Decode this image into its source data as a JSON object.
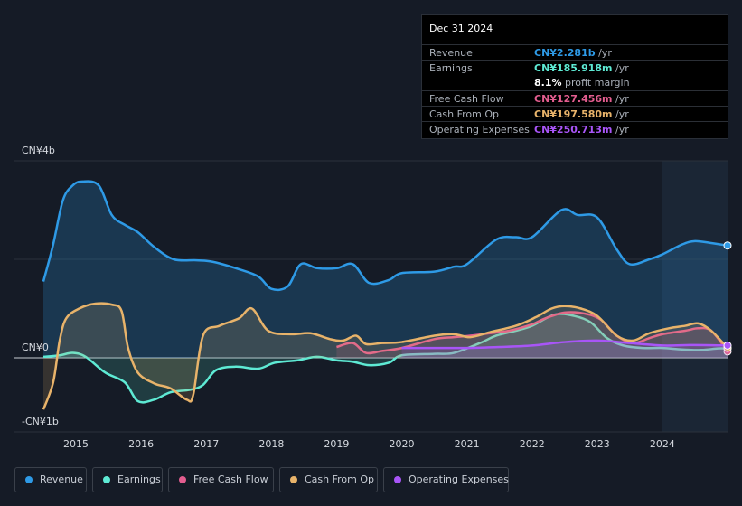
{
  "tooltip": {
    "date": "Dec 31 2024",
    "rows": [
      {
        "label": "Revenue",
        "value": "CN¥2.281b",
        "unit": "/yr",
        "color": "#2e9ae6"
      },
      {
        "label": "Earnings",
        "value": "CN¥185.918m",
        "unit": "/yr",
        "color": "#5eead4"
      },
      {
        "label": "",
        "value": "8.1%",
        "unit": "profit margin",
        "color": "#ffffff"
      },
      {
        "label": "Free Cash Flow",
        "value": "CN¥127.456m",
        "unit": "/yr",
        "color": "#e35d8f"
      },
      {
        "label": "Cash From Op",
        "value": "CN¥197.580m",
        "unit": "/yr",
        "color": "#e8b36a"
      },
      {
        "label": "Operating Expenses",
        "value": "CN¥250.713m",
        "unit": "/yr",
        "color": "#a855f7"
      }
    ]
  },
  "legend": [
    {
      "label": "Revenue",
      "color": "#2e9ae6"
    },
    {
      "label": "Earnings",
      "color": "#5eead4"
    },
    {
      "label": "Free Cash Flow",
      "color": "#e35d8f"
    },
    {
      "label": "Cash From Op",
      "color": "#e8b36a"
    },
    {
      "label": "Operating Expenses",
      "color": "#a855f7"
    }
  ],
  "chart_data": {
    "type": "area",
    "title": "",
    "xlabel": "",
    "ylabel": "",
    "y_tick_labels": [
      {
        "label": "CN¥4b",
        "value": 4
      },
      {
        "label": "CN¥0",
        "value": 0
      },
      {
        "label": "-CN¥1b",
        "value": -1
      }
    ],
    "ylim": [
      -1.5,
      4
    ],
    "xlim": [
      2014.5,
      2025.0
    ],
    "x_ticks": [
      2015,
      2016,
      2017,
      2018,
      2019,
      2020,
      2021,
      2022,
      2023,
      2024
    ],
    "highlight_start": 2024.0,
    "units": "CN¥ billions",
    "series": [
      {
        "name": "Revenue",
        "color": "#2e9ae6",
        "fill": true,
        "points": [
          [
            2014.5,
            1.55
          ],
          [
            2014.65,
            2.3
          ],
          [
            2014.8,
            3.2
          ],
          [
            2014.95,
            3.5
          ],
          [
            2015.1,
            3.58
          ],
          [
            2015.35,
            3.5
          ],
          [
            2015.55,
            2.9
          ],
          [
            2015.75,
            2.7
          ],
          [
            2015.95,
            2.55
          ],
          [
            2016.2,
            2.25
          ],
          [
            2016.5,
            2.0
          ],
          [
            2016.85,
            1.98
          ],
          [
            2017.1,
            1.95
          ],
          [
            2017.5,
            1.8
          ],
          [
            2017.8,
            1.65
          ],
          [
            2018.0,
            1.4
          ],
          [
            2018.25,
            1.45
          ],
          [
            2018.45,
            1.9
          ],
          [
            2018.7,
            1.82
          ],
          [
            2019.0,
            1.82
          ],
          [
            2019.25,
            1.9
          ],
          [
            2019.5,
            1.52
          ],
          [
            2019.8,
            1.58
          ],
          [
            2020.0,
            1.72
          ],
          [
            2020.5,
            1.75
          ],
          [
            2020.8,
            1.85
          ],
          [
            2021.0,
            1.9
          ],
          [
            2021.45,
            2.4
          ],
          [
            2021.75,
            2.45
          ],
          [
            2022.0,
            2.45
          ],
          [
            2022.45,
            3.0
          ],
          [
            2022.7,
            2.9
          ],
          [
            2023.0,
            2.85
          ],
          [
            2023.3,
            2.2
          ],
          [
            2023.5,
            1.9
          ],
          [
            2023.8,
            2.0
          ],
          [
            2024.0,
            2.1
          ],
          [
            2024.3,
            2.3
          ],
          [
            2024.5,
            2.37
          ],
          [
            2024.75,
            2.33
          ],
          [
            2025.0,
            2.28
          ]
        ]
      },
      {
        "name": "Earnings",
        "color": "#5eead4",
        "fill": true,
        "points": [
          [
            2014.5,
            0.02
          ],
          [
            2014.75,
            0.05
          ],
          [
            2014.95,
            0.1
          ],
          [
            2015.15,
            0.02
          ],
          [
            2015.45,
            -0.3
          ],
          [
            2015.75,
            -0.5
          ],
          [
            2015.95,
            -0.88
          ],
          [
            2016.2,
            -0.85
          ],
          [
            2016.45,
            -0.7
          ],
          [
            2016.75,
            -0.65
          ],
          [
            2016.95,
            -0.55
          ],
          [
            2017.15,
            -0.25
          ],
          [
            2017.45,
            -0.18
          ],
          [
            2017.8,
            -0.22
          ],
          [
            2018.05,
            -0.1
          ],
          [
            2018.4,
            -0.05
          ],
          [
            2018.7,
            0.02
          ],
          [
            2019.0,
            -0.05
          ],
          [
            2019.25,
            -0.08
          ],
          [
            2019.5,
            -0.15
          ],
          [
            2019.8,
            -0.1
          ],
          [
            2020.0,
            0.05
          ],
          [
            2020.5,
            0.08
          ],
          [
            2020.8,
            0.1
          ],
          [
            2021.2,
            0.3
          ],
          [
            2021.45,
            0.45
          ],
          [
            2021.75,
            0.55
          ],
          [
            2022.0,
            0.65
          ],
          [
            2022.35,
            0.88
          ],
          [
            2022.65,
            0.85
          ],
          [
            2022.9,
            0.72
          ],
          [
            2023.15,
            0.4
          ],
          [
            2023.4,
            0.25
          ],
          [
            2023.7,
            0.2
          ],
          [
            2024.0,
            0.2
          ],
          [
            2024.3,
            0.17
          ],
          [
            2024.6,
            0.16
          ],
          [
            2024.85,
            0.19
          ],
          [
            2025.0,
            0.19
          ]
        ]
      },
      {
        "name": "Free Cash Flow",
        "color": "#e35d8f",
        "fill": true,
        "points": [
          [
            2019.0,
            0.22
          ],
          [
            2019.25,
            0.3
          ],
          [
            2019.45,
            0.1
          ],
          [
            2019.7,
            0.14
          ],
          [
            2020.0,
            0.2
          ],
          [
            2020.5,
            0.38
          ],
          [
            2020.8,
            0.42
          ],
          [
            2021.05,
            0.45
          ],
          [
            2021.35,
            0.5
          ],
          [
            2021.65,
            0.55
          ],
          [
            2022.0,
            0.68
          ],
          [
            2022.2,
            0.8
          ],
          [
            2022.5,
            0.92
          ],
          [
            2022.8,
            0.9
          ],
          [
            2023.05,
            0.78
          ],
          [
            2023.3,
            0.45
          ],
          [
            2023.55,
            0.3
          ],
          [
            2023.8,
            0.4
          ],
          [
            2024.0,
            0.48
          ],
          [
            2024.35,
            0.55
          ],
          [
            2024.55,
            0.6
          ],
          [
            2024.75,
            0.55
          ],
          [
            2025.0,
            0.13
          ]
        ]
      },
      {
        "name": "Cash From Op",
        "color": "#e8b36a",
        "fill": true,
        "points": [
          [
            2014.5,
            -1.05
          ],
          [
            2014.65,
            -0.5
          ],
          [
            2014.75,
            0.35
          ],
          [
            2014.85,
            0.8
          ],
          [
            2015.05,
            1.0
          ],
          [
            2015.3,
            1.1
          ],
          [
            2015.55,
            1.08
          ],
          [
            2015.7,
            0.95
          ],
          [
            2015.8,
            0.2
          ],
          [
            2015.95,
            -0.3
          ],
          [
            2016.2,
            -0.52
          ],
          [
            2016.45,
            -0.62
          ],
          [
            2016.7,
            -0.85
          ],
          [
            2016.8,
            -0.75
          ],
          [
            2016.95,
            0.45
          ],
          [
            2017.2,
            0.65
          ],
          [
            2017.5,
            0.8
          ],
          [
            2017.7,
            1.0
          ],
          [
            2017.95,
            0.55
          ],
          [
            2018.3,
            0.48
          ],
          [
            2018.6,
            0.5
          ],
          [
            2018.9,
            0.38
          ],
          [
            2019.1,
            0.35
          ],
          [
            2019.3,
            0.45
          ],
          [
            2019.45,
            0.28
          ],
          [
            2019.7,
            0.3
          ],
          [
            2020.0,
            0.32
          ],
          [
            2020.5,
            0.45
          ],
          [
            2020.8,
            0.48
          ],
          [
            2021.05,
            0.42
          ],
          [
            2021.35,
            0.52
          ],
          [
            2021.75,
            0.65
          ],
          [
            2022.05,
            0.82
          ],
          [
            2022.3,
            1.0
          ],
          [
            2022.5,
            1.05
          ],
          [
            2022.75,
            1.0
          ],
          [
            2023.0,
            0.85
          ],
          [
            2023.3,
            0.45
          ],
          [
            2023.55,
            0.35
          ],
          [
            2023.8,
            0.5
          ],
          [
            2024.1,
            0.6
          ],
          [
            2024.35,
            0.65
          ],
          [
            2024.55,
            0.7
          ],
          [
            2024.75,
            0.55
          ],
          [
            2025.0,
            0.2
          ]
        ]
      },
      {
        "name": "Operating Expenses",
        "color": "#a855f7",
        "fill": true,
        "points": [
          [
            2020.0,
            0.2
          ],
          [
            2020.5,
            0.2
          ],
          [
            2021.0,
            0.2
          ],
          [
            2021.5,
            0.22
          ],
          [
            2022.0,
            0.25
          ],
          [
            2022.5,
            0.32
          ],
          [
            2023.0,
            0.35
          ],
          [
            2023.5,
            0.3
          ],
          [
            2024.0,
            0.25
          ],
          [
            2024.5,
            0.26
          ],
          [
            2025.0,
            0.25
          ]
        ]
      }
    ]
  }
}
